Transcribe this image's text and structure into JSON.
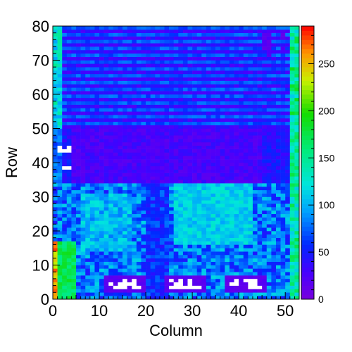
{
  "chart_data": {
    "type": "heatmap",
    "title": "",
    "xlabel": "Column",
    "ylabel": "Row",
    "xlim": [
      0,
      53
    ],
    "ylim": [
      0,
      80
    ],
    "xticks": [
      0,
      10,
      20,
      30,
      40,
      50
    ],
    "yticks": [
      0,
      10,
      20,
      30,
      40,
      50,
      60,
      70,
      80
    ],
    "color_scale": {
      "min": 0,
      "max": 290,
      "ticks": [
        0,
        50,
        100,
        150,
        200,
        250
      ],
      "colormap": "rainbow (violet-blue-cyan-green-yellow-red)"
    },
    "grid": false,
    "n_columns": 53,
    "n_rows": 80,
    "description_of_values": {
      "rows_50_to_80": "striped pattern alternating ~35 and ~75 on even/odd rows; columns 0-2 ~90-150; columns 51-52 ~120-180",
      "rows_34_to_50": "dark violet band ~15-35; white (empty) patch near columns 1-3 at rows 36-45",
      "rows_0_to_34": "mixed ~40-130; columns 0-1 rows 0-16 ~220-260; columns 1-4 rows 0-16 ~160-180; three violet blocks with white gaps at rows 2-6, columns 11-19, 24-32, 37-45"
    }
  }
}
